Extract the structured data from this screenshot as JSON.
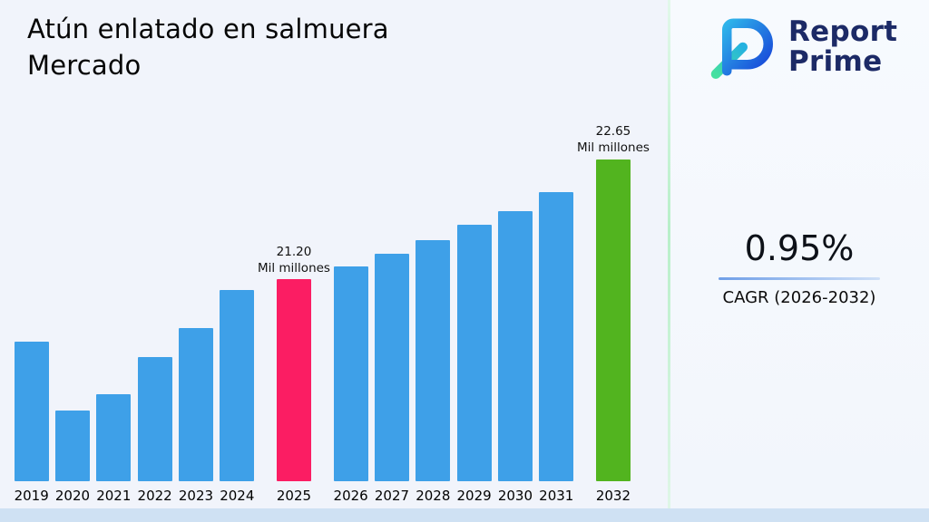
{
  "title": "Atún enlatado en salmuera Mercado",
  "logo": {
    "name_line1": "Report",
    "name_line2": "Prime"
  },
  "stats": {
    "cagr_value": "0.95%",
    "cagr_label": "CAGR (2026-2032)"
  },
  "chart_data": {
    "type": "bar",
    "title": "Atún enlatado en salmuera Mercado",
    "unit": "Mil millones",
    "categories": [
      "2019",
      "2020",
      "2021",
      "2022",
      "2023",
      "2024",
      "2025",
      "2026",
      "2027",
      "2028",
      "2029",
      "2030",
      "2031",
      "2032"
    ],
    "values": [
      20.45,
      19.62,
      19.82,
      20.27,
      20.61,
      21.07,
      21.2,
      21.36,
      21.51,
      21.67,
      21.86,
      22.02,
      22.25,
      22.65
    ],
    "ylim": [
      18.77,
      22.95
    ],
    "grid": false,
    "legend": false,
    "annotations": {
      "2025": {
        "value": "21.20",
        "unit": "Mil millones"
      },
      "2032": {
        "value": "22.65",
        "unit": "Mil millones"
      }
    },
    "colors": {
      "default": "#3EA0E8",
      "2025": "#FB1D63",
      "2032": "#52B41F"
    }
  }
}
